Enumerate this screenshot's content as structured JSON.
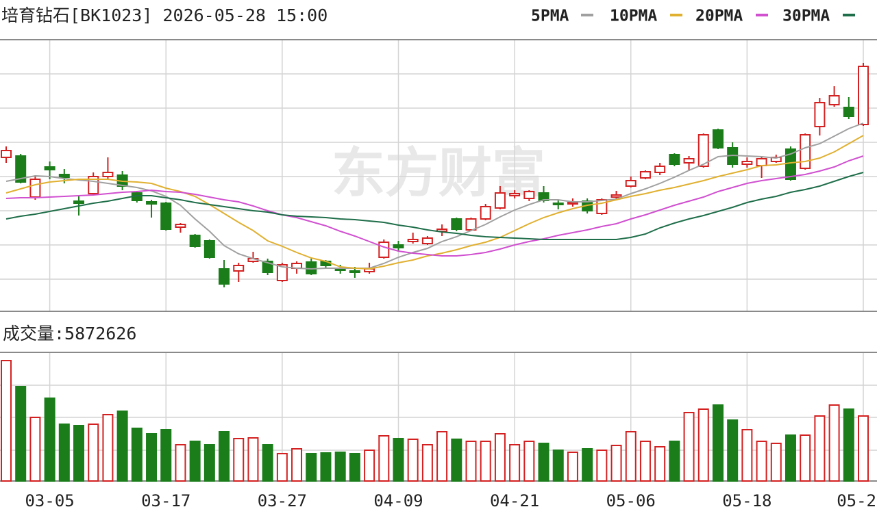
{
  "chart_data": [
    {
      "type": "candlestick",
      "title": "培育钻石[BK1023] 2026-05-28 15:00",
      "watermark": "东方财富",
      "up_color": "#d42020",
      "down_color": "#1a7d1a",
      "categories": [
        null,
        null,
        null,
        "03-05",
        null,
        null,
        null,
        null,
        null,
        null,
        null,
        "03-17",
        null,
        null,
        null,
        null,
        null,
        null,
        null,
        "03-27",
        null,
        null,
        null,
        null,
        null,
        null,
        null,
        "04-09",
        null,
        null,
        null,
        null,
        null,
        null,
        null,
        "04-21",
        null,
        null,
        null,
        null,
        null,
        null,
        null,
        "05-06",
        null,
        null,
        null,
        null,
        null,
        null,
        null,
        "05-18",
        null,
        null,
        null,
        null,
        null,
        null,
        null,
        "05-2"
      ],
      "open": [
        225,
        227,
        167,
        211,
        200,
        161,
        172,
        197,
        199,
        173,
        160,
        158,
        123,
        111,
        103,
        62,
        59,
        73,
        73,
        45,
        63,
        72,
        73,
        63,
        59,
        58,
        79,
        97,
        102,
        99,
        117,
        135,
        119,
        135,
        151,
        169,
        165,
        173,
        158,
        157,
        161,
        143,
        167,
        183,
        195,
        203,
        229,
        217,
        212,
        265,
        239,
        215,
        213,
        219,
        237,
        209,
        270,
        302,
        298,
        273
      ],
      "high": [
        241,
        230,
        197,
        219,
        208,
        168,
        203,
        225,
        205,
        176,
        163,
        160,
        129,
        113,
        105,
        75,
        71,
        87,
        77,
        71,
        73,
        77,
        75,
        68,
        65,
        71,
        105,
        103,
        115,
        110,
        127,
        137,
        137,
        157,
        183,
        177,
        177,
        183,
        163,
        165,
        165,
        165,
        176,
        197,
        206,
        217,
        231,
        227,
        260,
        267,
        247,
        225,
        227,
        229,
        241,
        260,
        312,
        329,
        313,
        363
      ],
      "low": [
        217,
        187,
        163,
        193,
        187,
        140,
        170,
        193,
        177,
        159,
        137,
        118,
        115,
        93,
        77,
        35,
        43,
        71,
        53,
        43,
        55,
        53,
        63,
        55,
        49,
        55,
        77,
        89,
        99,
        97,
        110,
        117,
        117,
        133,
        149,
        165,
        161,
        159,
        149,
        153,
        143,
        141,
        162,
        181,
        193,
        199,
        212,
        205,
        210,
        237,
        210,
        210,
        195,
        217,
        191,
        207,
        257,
        299,
        281,
        271
      ],
      "close": [
        235,
        189,
        193,
        207,
        196,
        158,
        197,
        203,
        183,
        162,
        157,
        120,
        127,
        95,
        79,
        40,
        67,
        77,
        57,
        68,
        70,
        55,
        67,
        60,
        57,
        62,
        101,
        93,
        105,
        107,
        120,
        120,
        135,
        153,
        173,
        172,
        175,
        162,
        156,
        159,
        147,
        163,
        170,
        191,
        204,
        212,
        215,
        223,
        258,
        239,
        215,
        219,
        223,
        225,
        193,
        258,
        305,
        315,
        285,
        358
      ],
      "series": [
        {
          "name": "5PMA",
          "color": "#a0a0a0",
          "values": [
            190,
            194,
            198,
            197,
            194,
            192,
            190,
            187,
            184,
            181,
            176,
            168,
            155,
            135,
            117,
            96,
            84,
            77,
            71,
            65,
            63,
            62,
            63,
            63,
            63,
            63,
            70,
            79,
            86,
            92,
            102,
            109,
            118,
            127,
            138,
            148,
            156,
            163,
            163,
            160,
            160,
            162,
            164,
            172,
            179,
            187,
            196,
            206,
            215,
            226,
            228,
            227,
            226,
            224,
            230,
            239,
            245,
            256,
            267,
            275
          ]
        },
        {
          "name": "10PMA",
          "color": "#e0b030",
          "values": [
            173,
            179,
            185,
            189,
            191,
            193,
            193,
            193,
            190,
            189,
            187,
            180,
            175,
            168,
            156,
            143,
            130,
            118,
            103,
            95,
            86,
            78,
            73,
            65,
            63,
            62,
            66,
            71,
            75,
            81,
            85,
            90,
            96,
            101,
            108,
            118,
            128,
            137,
            144,
            150,
            155,
            158,
            163,
            168,
            172,
            177,
            181,
            186,
            191,
            197,
            202,
            207,
            213,
            214,
            217,
            219,
            224,
            233,
            245,
            257
          ]
        },
        {
          "name": "20PMA",
          "color": "#d050d0",
          "values": [
            165,
            166,
            166,
            167,
            168,
            169,
            170,
            172,
            174,
            175,
            177,
            175,
            174,
            171,
            167,
            163,
            160,
            154,
            147,
            141,
            137,
            131,
            125,
            117,
            110,
            102,
            94,
            88,
            85,
            83,
            81,
            81,
            83,
            86,
            91,
            97,
            102,
            106,
            111,
            115,
            119,
            124,
            128,
            135,
            141,
            148,
            155,
            161,
            167,
            175,
            181,
            187,
            191,
            194,
            197,
            200,
            205,
            211,
            220,
            227
          ]
        },
        {
          "name": "30PMA",
          "color": "#1f6e4a",
          "values": [
            135,
            139,
            142,
            146,
            150,
            154,
            158,
            161,
            165,
            169,
            169,
            166,
            163,
            159,
            156,
            153,
            150,
            147,
            145,
            141,
            139,
            138,
            137,
            135,
            134,
            132,
            130,
            126,
            123,
            119,
            116,
            114,
            111,
            109,
            108,
            107,
            106,
            105,
            105,
            105,
            105,
            105,
            105,
            108,
            113,
            122,
            129,
            135,
            140,
            146,
            152,
            159,
            164,
            168,
            174,
            178,
            183,
            190,
            197,
            203
          ]
        }
      ]
    },
    {
      "type": "volume",
      "title": "成交量:5872626",
      "values": [
        10880000,
        8531000,
        5749000,
        7480000,
        5131000,
        5007000,
        5131000,
        5996000,
        6305000,
        4760000,
        4265000,
        4636000,
        3276000,
        3585000,
        3276000,
        4451000,
        3833000,
        3894000,
        3276000,
        2473000,
        2905000,
        2473000,
        2534000,
        2596000,
        2473000,
        2782000,
        4080000,
        3833000,
        3771000,
        3276000,
        4451000,
        3771000,
        3585000,
        3585000,
        4265000,
        3276000,
        3585000,
        3400000,
        2782000,
        2596000,
        2905000,
        2782000,
        3214000,
        4451000,
        3585000,
        3091000,
        3585000,
        6182000,
        6491000,
        6862000,
        5502000,
        4636000,
        3585000,
        3400000,
        4142000,
        4142000,
        5873000,
        6862000,
        6491000,
        5872626
      ]
    }
  ]
}
